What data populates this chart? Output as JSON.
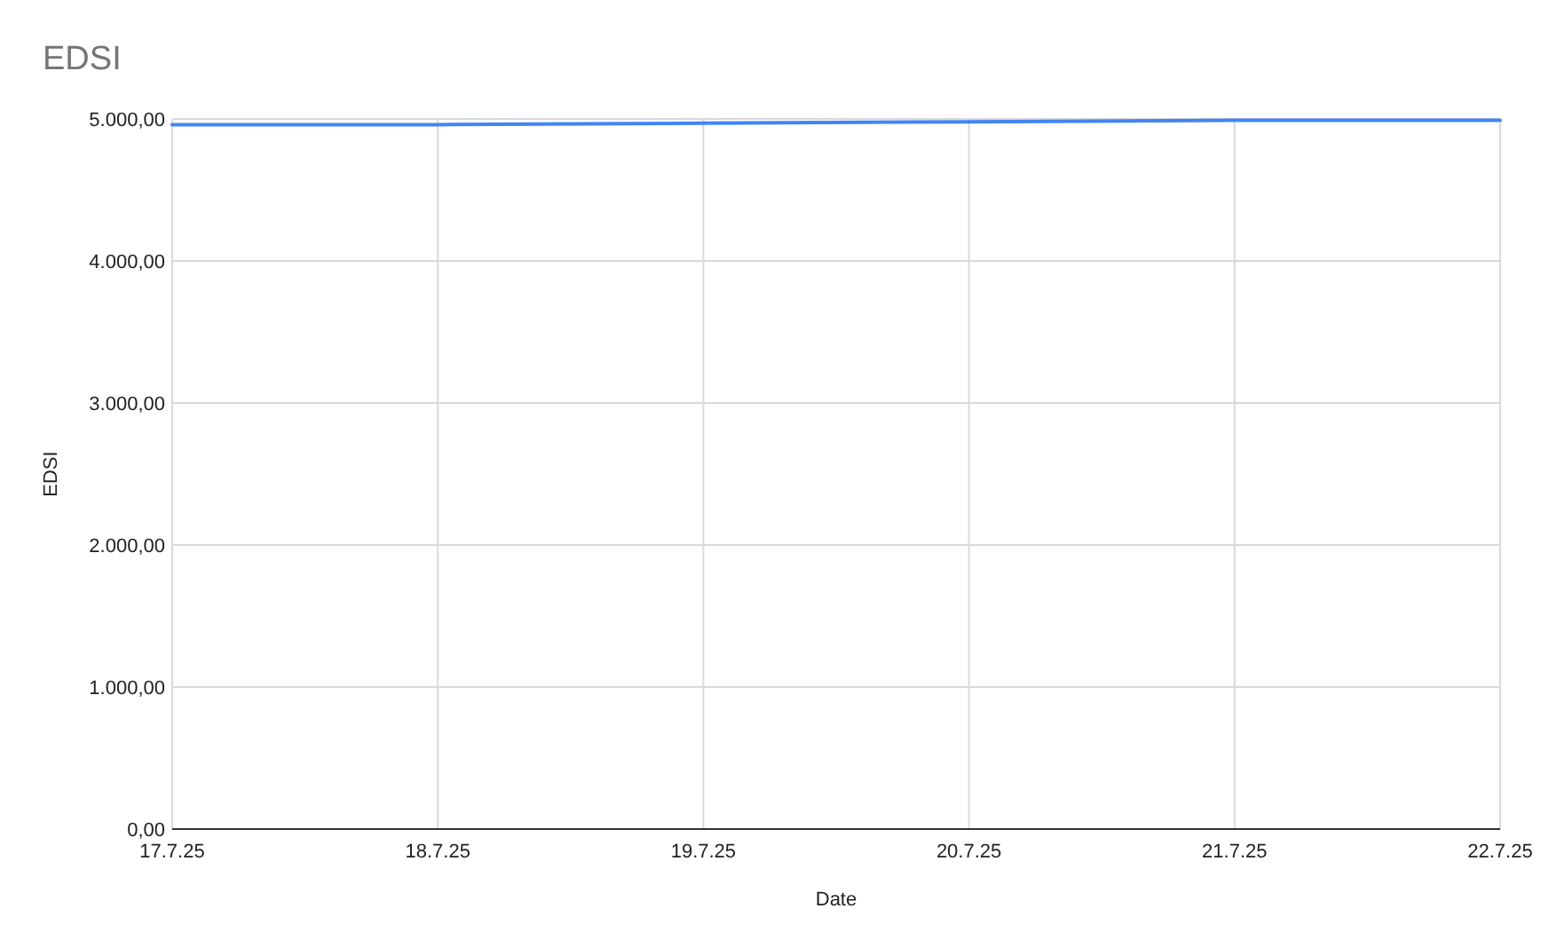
{
  "chart_data": {
    "type": "line",
    "title": "EDSI",
    "xlabel": "Date",
    "ylabel": "EDSI",
    "categories": [
      "17.7.25",
      "18.7.25",
      "19.7.25",
      "20.7.25",
      "21.7.25",
      "22.7.25"
    ],
    "series": [
      {
        "color": "#4285f4",
        "values": [
          4960,
          4960,
          4970,
          4980,
          4990,
          4990
        ]
      }
    ],
    "ylim": [
      0,
      5000
    ],
    "yticks": [
      {
        "value": 0,
        "label": "0,00"
      },
      {
        "value": 1000,
        "label": "1.000,00"
      },
      {
        "value": 2000,
        "label": "2.000,00"
      },
      {
        "value": 3000,
        "label": "3.000,00"
      },
      {
        "value": 4000,
        "label": "4.000,00"
      },
      {
        "value": 5000,
        "label": "5.000,00"
      }
    ],
    "grid": true,
    "marker": "none",
    "line_style": "solid"
  }
}
